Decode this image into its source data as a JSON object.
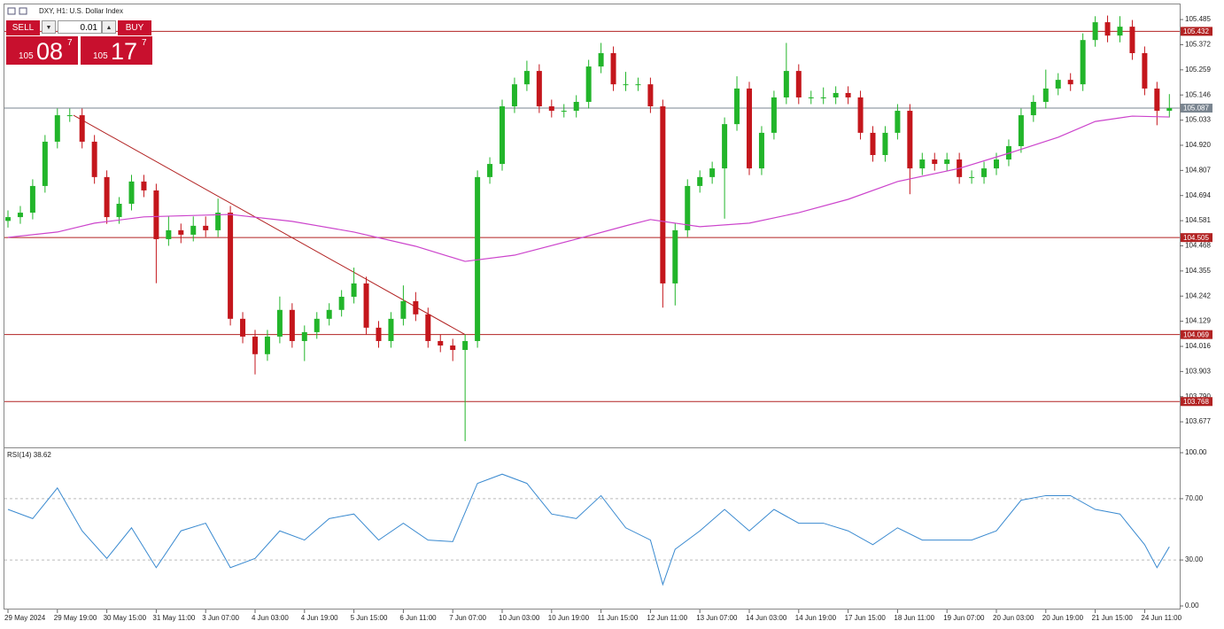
{
  "header": "DXY, H1:  U.S. Dollar Index",
  "trade_panel": {
    "sell": "SELL",
    "buy": "BUY",
    "volume": "0.01",
    "bid": {
      "big": "105",
      "main": "08",
      "sup": "7"
    },
    "ask": {
      "big": "105",
      "main": "17",
      "sup": "7"
    }
  },
  "chart_data": {
    "type": "candlestick",
    "categories": [
      "29 May 2024",
      null,
      null,
      null,
      "29 May 19:00",
      null,
      null,
      null,
      "30 May 15:00",
      null,
      null,
      null,
      "31 May 11:00",
      null,
      null,
      null,
      "3 Jun 07:00",
      null,
      null,
      null,
      "4 Jun 03:00",
      null,
      null,
      null,
      "4 Jun 19:00",
      null,
      null,
      null,
      "5 Jun 15:00",
      null,
      null,
      null,
      "6 Jun 11:00",
      null,
      null,
      null,
      "7 Jun 07:00",
      null,
      null,
      null,
      "10 Jun 03:00",
      null,
      null,
      null,
      "10 Jun 19:00",
      null,
      null,
      null,
      "11 Jun 15:00",
      null,
      null,
      null,
      "12 Jun 11:00",
      null,
      null,
      null,
      "13 Jun 07:00",
      null,
      null,
      null,
      "14 Jun 03:00",
      null,
      null,
      null,
      "14 Jun 19:00",
      null,
      null,
      null,
      "17 Jun 15:00",
      null,
      null,
      null,
      "18 Jun 11:00",
      null,
      null,
      null,
      "19 Jun 07:00",
      null,
      null,
      null,
      "20 Jun 03:00",
      null,
      null,
      null,
      "20 Jun 19:00",
      null,
      null,
      null,
      "21 Jun 15:00",
      null,
      null,
      null,
      "24 Jun 11:00",
      null,
      null
    ],
    "candles": [
      [
        104.58,
        104.627,
        104.55,
        104.597
      ],
      [
        104.597,
        104.647,
        104.567,
        104.617
      ],
      [
        104.617,
        104.767,
        104.587,
        104.737
      ],
      [
        104.737,
        104.966,
        104.707,
        104.936
      ],
      [
        104.936,
        105.085,
        104.906,
        105.055
      ],
      [
        105.055,
        105.085,
        105.025,
        105.055
      ],
      [
        105.055,
        105.085,
        104.906,
        104.936
      ],
      [
        104.936,
        104.966,
        104.747,
        104.777
      ],
      [
        104.777,
        104.807,
        104.567,
        104.597
      ],
      [
        104.597,
        104.687,
        104.567,
        104.657
      ],
      [
        104.657,
        104.787,
        104.627,
        104.757
      ],
      [
        104.757,
        104.787,
        104.687,
        104.717
      ],
      [
        104.717,
        104.747,
        104.3,
        104.498
      ],
      [
        104.498,
        104.6,
        104.468,
        104.538
      ],
      [
        104.538,
        104.568,
        104.48,
        104.518
      ],
      [
        104.518,
        104.6,
        104.488,
        104.558
      ],
      [
        104.558,
        104.6,
        104.508,
        104.538
      ],
      [
        104.538,
        104.68,
        104.508,
        104.617
      ],
      [
        104.617,
        104.647,
        104.11,
        104.14
      ],
      [
        104.14,
        104.17,
        104.03,
        104.06
      ],
      [
        104.06,
        104.09,
        103.89,
        103.981
      ],
      [
        103.981,
        104.09,
        103.951,
        104.06
      ],
      [
        104.06,
        104.24,
        104.03,
        104.18
      ],
      [
        104.18,
        104.21,
        104.01,
        104.04
      ],
      [
        104.04,
        104.11,
        103.95,
        104.08
      ],
      [
        104.08,
        104.17,
        104.05,
        104.14
      ],
      [
        104.14,
        104.21,
        104.11,
        104.18
      ],
      [
        104.18,
        104.269,
        104.15,
        104.239
      ],
      [
        104.239,
        104.37,
        104.209,
        104.299
      ],
      [
        104.299,
        104.329,
        104.07,
        104.1
      ],
      [
        104.1,
        104.13,
        104.01,
        104.04
      ],
      [
        104.04,
        104.17,
        104.01,
        104.14
      ],
      [
        104.14,
        104.29,
        104.11,
        104.219
      ],
      [
        104.219,
        104.26,
        104.13,
        104.16
      ],
      [
        104.16,
        104.19,
        104.01,
        104.04
      ],
      [
        104.04,
        104.07,
        103.99,
        104.02
      ],
      [
        104.02,
        104.05,
        103.95,
        104.0
      ],
      [
        104.0,
        104.07,
        103.59,
        104.04
      ],
      [
        104.04,
        104.807,
        104.01,
        104.777
      ],
      [
        104.777,
        104.866,
        104.747,
        104.836
      ],
      [
        104.836,
        105.125,
        104.806,
        105.095
      ],
      [
        105.095,
        105.224,
        105.065,
        105.194
      ],
      [
        105.194,
        105.3,
        105.164,
        105.254
      ],
      [
        105.254,
        105.284,
        105.065,
        105.095
      ],
      [
        105.095,
        105.125,
        105.045,
        105.075
      ],
      [
        105.075,
        105.105,
        105.045,
        105.075
      ],
      [
        105.075,
        105.145,
        105.045,
        105.115
      ],
      [
        105.115,
        105.304,
        105.085,
        105.274
      ],
      [
        105.274,
        105.38,
        105.244,
        105.334
      ],
      [
        105.334,
        105.364,
        105.164,
        105.194
      ],
      [
        105.194,
        105.25,
        105.164,
        105.194
      ],
      [
        105.194,
        105.224,
        105.164,
        105.194
      ],
      [
        105.194,
        105.224,
        105.065,
        105.095
      ],
      [
        105.095,
        105.125,
        104.19,
        104.299
      ],
      [
        104.299,
        104.568,
        104.2,
        104.538
      ],
      [
        104.538,
        104.767,
        104.508,
        104.737
      ],
      [
        104.737,
        104.807,
        104.707,
        104.777
      ],
      [
        104.777,
        104.846,
        104.747,
        104.816
      ],
      [
        104.816,
        105.045,
        104.59,
        105.015
      ],
      [
        105.015,
        105.23,
        104.985,
        105.175
      ],
      [
        105.175,
        105.205,
        104.786,
        104.816
      ],
      [
        104.816,
        105.006,
        104.786,
        104.976
      ],
      [
        104.976,
        105.165,
        104.946,
        105.135
      ],
      [
        105.135,
        105.38,
        105.105,
        105.254
      ],
      [
        105.254,
        105.284,
        105.105,
        105.135
      ],
      [
        105.135,
        105.165,
        105.105,
        105.135
      ],
      [
        105.135,
        105.18,
        105.105,
        105.135
      ],
      [
        105.135,
        105.185,
        105.105,
        105.155
      ],
      [
        105.155,
        105.185,
        105.105,
        105.135
      ],
      [
        105.135,
        105.165,
        104.946,
        104.976
      ],
      [
        104.976,
        105.006,
        104.846,
        104.876
      ],
      [
        104.876,
        105.006,
        104.846,
        104.976
      ],
      [
        104.976,
        105.105,
        104.946,
        105.075
      ],
      [
        105.075,
        105.105,
        104.7,
        104.816
      ],
      [
        104.816,
        104.886,
        104.786,
        104.856
      ],
      [
        104.856,
        104.886,
        104.806,
        104.836
      ],
      [
        104.836,
        104.886,
        104.806,
        104.856
      ],
      [
        104.856,
        104.886,
        104.747,
        104.777
      ],
      [
        104.777,
        104.807,
        104.747,
        104.777
      ],
      [
        104.777,
        104.846,
        104.747,
        104.816
      ],
      [
        104.816,
        104.886,
        104.786,
        104.856
      ],
      [
        104.856,
        104.946,
        104.826,
        104.916
      ],
      [
        104.916,
        105.085,
        104.886,
        105.055
      ],
      [
        105.055,
        105.145,
        105.025,
        105.115
      ],
      [
        105.115,
        105.26,
        105.085,
        105.175
      ],
      [
        105.175,
        105.244,
        105.145,
        105.214
      ],
      [
        105.214,
        105.244,
        105.164,
        105.194
      ],
      [
        105.194,
        105.423,
        105.164,
        105.393
      ],
      [
        105.393,
        105.5,
        105.363,
        105.473
      ],
      [
        105.473,
        105.503,
        105.383,
        105.413
      ],
      [
        105.413,
        105.5,
        105.383,
        105.453
      ],
      [
        105.453,
        105.483,
        105.304,
        105.334
      ],
      [
        105.334,
        105.364,
        105.145,
        105.175
      ],
      [
        105.175,
        105.205,
        105.01,
        105.075
      ],
      [
        105.075,
        105.15,
        105.045,
        105.087
      ]
    ],
    "bull_color": "#22b52a",
    "bear_color": "#c4161c",
    "ylim": [
      103.562,
      105.553
    ],
    "yticks": [
      105.485,
      105.372,
      105.259,
      105.146,
      105.033,
      {
        "value": 104.92,
        "label": "104.920"
      },
      104.807,
      104.694,
      104.581,
      104.468,
      104.355,
      104.242,
      104.129,
      104.016,
      103.903,
      {
        "value": 103.79,
        "label": "103.790"
      },
      103.677
    ],
    "ma": {
      "color": "#cc44cc",
      "x": [
        0,
        4,
        7,
        11,
        16,
        18,
        23,
        28,
        33,
        37,
        41,
        46,
        50,
        52,
        56,
        60,
        64,
        68,
        72,
        77,
        81,
        85,
        88,
        91,
        94
      ],
      "values": [
        104.506,
        104.53,
        104.57,
        104.598,
        104.606,
        104.609,
        104.578,
        104.53,
        104.466,
        104.398,
        104.426,
        104.498,
        104.558,
        104.586,
        104.554,
        104.57,
        104.617,
        104.677,
        104.757,
        104.816,
        104.884,
        104.956,
        105.027,
        105.051,
        105.047
      ]
    },
    "hlines": [
      105.432,
      104.505,
      104.069,
      103.768
    ],
    "hline_color": "#b22222",
    "current_price": 105.087,
    "trendline": {
      "color": "#b22222",
      "x": [
        5.3,
        37
      ],
      "y": [
        105.055,
        104.069
      ]
    },
    "rsi": {
      "label": "RSI(14) 38.62",
      "color": "#3a8ad0",
      "ylim": [
        0,
        100
      ],
      "yticks": [
        {
          "value": 100,
          "label": "100.00"
        },
        {
          "value": 70,
          "label": "70.00"
        },
        {
          "value": 30,
          "label": "30.00"
        },
        {
          "value": 0,
          "label": "0.00"
        }
      ],
      "levels": [
        70,
        30
      ],
      "x": [
        0,
        2,
        4,
        6,
        8,
        10,
        12,
        14,
        16,
        18,
        20,
        22,
        24,
        26,
        28,
        30,
        32,
        34,
        36,
        38,
        40,
        42,
        44,
        46,
        48,
        50,
        52,
        53,
        54,
        56,
        58,
        60,
        62,
        64,
        66,
        68,
        70,
        72,
        74,
        76,
        78,
        80,
        82,
        84,
        86,
        88,
        90,
        92,
        93,
        94
      ],
      "values": [
        63,
        57,
        77,
        49,
        31,
        51,
        25,
        49,
        54,
        25,
        31,
        49,
        43,
        57,
        60,
        43,
        54,
        43,
        42,
        80,
        86,
        80,
        60,
        57,
        72,
        51,
        43,
        14,
        37,
        49,
        63,
        49,
        63,
        54,
        54,
        49,
        40,
        51,
        43,
        43,
        43,
        49,
        69,
        72,
        72,
        63,
        60,
        40,
        25,
        38.62
      ]
    }
  }
}
